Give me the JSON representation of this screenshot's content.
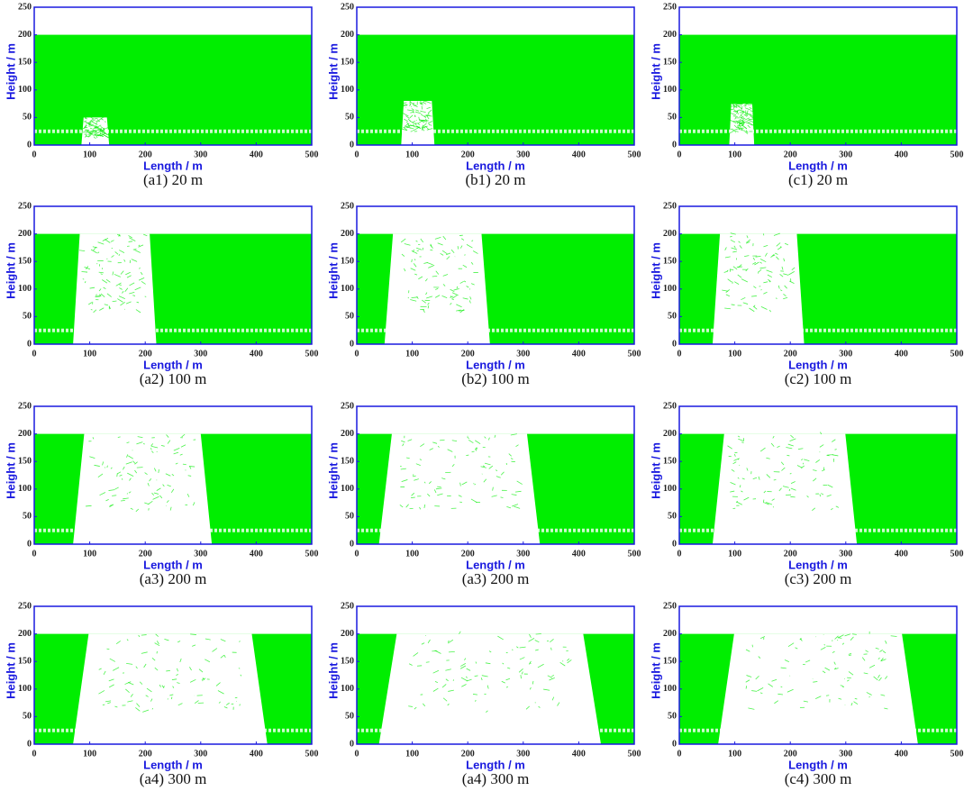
{
  "chart_data": [
    {
      "type": "field",
      "caption": "(a1) 20 m",
      "xlabel": "Length / m",
      "ylabel": "Height / m",
      "xlim": [
        0,
        500
      ],
      "ylim": [
        0,
        250
      ],
      "xticks": [
        0,
        100,
        200,
        300,
        400,
        500
      ],
      "yticks": [
        0,
        50,
        100,
        150,
        200,
        250
      ],
      "fill_top": 200,
      "layer_height": 25,
      "color": "#00ee00",
      "zone": {
        "x": [
          85,
          135
        ],
        "top": 50
      }
    },
    {
      "type": "field",
      "caption": "(b1) 20 m",
      "xlabel": "Length / m",
      "ylabel": "Height / m",
      "xlim": [
        0,
        500
      ],
      "ylim": [
        0,
        250
      ],
      "xticks": [
        0,
        100,
        200,
        300,
        400,
        500
      ],
      "yticks": [
        0,
        50,
        100,
        150,
        200,
        250
      ],
      "fill_top": 200,
      "layer_height": 25,
      "color": "#00ee00",
      "zone": {
        "x": [
          80,
          140
        ],
        "top": 80
      }
    },
    {
      "type": "field",
      "caption": "(c1) 20 m",
      "xlabel": "Length / m",
      "ylabel": "Height / m",
      "xlim": [
        0,
        500
      ],
      "ylim": [
        0,
        250
      ],
      "xticks": [
        0,
        100,
        200,
        300,
        400,
        500
      ],
      "yticks": [
        0,
        50,
        100,
        150,
        200,
        250
      ],
      "fill_top": 200,
      "layer_height": 25,
      "color": "#00ee00",
      "zone": {
        "x": [
          90,
          135
        ],
        "top": 75
      }
    },
    {
      "type": "field",
      "caption": "(a2) 100 m",
      "xlabel": "Length / m",
      "ylabel": "Height / m",
      "xlim": [
        0,
        500
      ],
      "ylim": [
        0,
        250
      ],
      "xticks": [
        0,
        100,
        200,
        300,
        400,
        500
      ],
      "yticks": [
        0,
        50,
        100,
        150,
        200,
        250
      ],
      "fill_top": 200,
      "layer_height": 25,
      "color": "#00ee00",
      "zone": {
        "x": [
          70,
          220
        ],
        "top": 200
      }
    },
    {
      "type": "field",
      "caption": "(b2) 100 m",
      "xlabel": "Length / m",
      "ylabel": "Height / m",
      "xlim": [
        0,
        500
      ],
      "ylim": [
        0,
        250
      ],
      "xticks": [
        0,
        100,
        200,
        300,
        400,
        500
      ],
      "yticks": [
        0,
        50,
        100,
        150,
        200,
        250
      ],
      "fill_top": 200,
      "layer_height": 25,
      "color": "#00ee00",
      "zone": {
        "x": [
          50,
          240
        ],
        "top": 200
      }
    },
    {
      "type": "field",
      "caption": "(c2) 100 m",
      "xlabel": "Length / m",
      "ylabel": "Height / m",
      "xlim": [
        0,
        500
      ],
      "ylim": [
        0,
        250
      ],
      "xticks": [
        0,
        100,
        200,
        300,
        400,
        500
      ],
      "yticks": [
        0,
        50,
        100,
        150,
        200,
        250
      ],
      "fill_top": 200,
      "layer_height": 25,
      "color": "#00ee00",
      "zone": {
        "x": [
          60,
          225
        ],
        "top": 200
      }
    },
    {
      "type": "field",
      "caption": "(a3) 200 m",
      "xlabel": "Length / m",
      "ylabel": "Height / m",
      "xlim": [
        0,
        500
      ],
      "ylim": [
        0,
        250
      ],
      "xticks": [
        0,
        100,
        200,
        300,
        400,
        500
      ],
      "yticks": [
        0,
        50,
        100,
        150,
        200,
        250
      ],
      "fill_top": 200,
      "layer_height": 25,
      "color": "#00ee00",
      "zone": {
        "x": [
          70,
          320
        ],
        "top": 200
      }
    },
    {
      "type": "field",
      "caption": "(a3) 200 m",
      "xlabel": "Length / m",
      "ylabel": "Height / m",
      "xlim": [
        0,
        500
      ],
      "ylim": [
        0,
        250
      ],
      "xticks": [
        0,
        100,
        200,
        300,
        400,
        500
      ],
      "yticks": [
        0,
        50,
        100,
        150,
        200,
        250
      ],
      "fill_top": 200,
      "layer_height": 25,
      "color": "#00ee00",
      "zone": {
        "x": [
          40,
          330
        ],
        "top": 200
      }
    },
    {
      "type": "field",
      "caption": "(c3) 200 m",
      "xlabel": "Length / m",
      "ylabel": "Height / m",
      "xlim": [
        0,
        500
      ],
      "ylim": [
        0,
        250
      ],
      "xticks": [
        0,
        100,
        200,
        300,
        400,
        500
      ],
      "yticks": [
        0,
        50,
        100,
        150,
        200,
        250
      ],
      "fill_top": 200,
      "layer_height": 25,
      "color": "#00ee00",
      "zone": {
        "x": [
          60,
          320
        ],
        "top": 200
      }
    },
    {
      "type": "field",
      "caption": "(a4) 300 m",
      "xlabel": "Length / m",
      "ylabel": "Height / m",
      "xlim": [
        0,
        500
      ],
      "ylim": [
        0,
        250
      ],
      "xticks": [
        0,
        100,
        200,
        300,
        400,
        500
      ],
      "yticks": [
        0,
        50,
        100,
        150,
        200,
        250
      ],
      "fill_top": 200,
      "layer_height": 25,
      "color": "#00ee00",
      "zone": {
        "x": [
          70,
          420
        ],
        "top": 200
      }
    },
    {
      "type": "field",
      "caption": "(a4) 300 m",
      "xlabel": "Length / m",
      "ylabel": "Height / m",
      "xlim": [
        0,
        500
      ],
      "ylim": [
        0,
        250
      ],
      "xticks": [
        0,
        100,
        200,
        300,
        400,
        500
      ],
      "yticks": [
        0,
        50,
        100,
        150,
        200,
        250
      ],
      "fill_top": 200,
      "layer_height": 25,
      "color": "#00ee00",
      "zone": {
        "x": [
          40,
          440
        ],
        "top": 200
      }
    },
    {
      "type": "field",
      "caption": "(c4) 300 m",
      "xlabel": "Length / m",
      "ylabel": "Height / m",
      "xlim": [
        0,
        500
      ],
      "ylim": [
        0,
        250
      ],
      "xticks": [
        0,
        100,
        200,
        300,
        400,
        500
      ],
      "yticks": [
        0,
        50,
        100,
        150,
        200,
        250
      ],
      "fill_top": 200,
      "layer_height": 25,
      "color": "#00ee00",
      "zone": {
        "x": [
          70,
          430
        ],
        "top": 200
      }
    }
  ]
}
